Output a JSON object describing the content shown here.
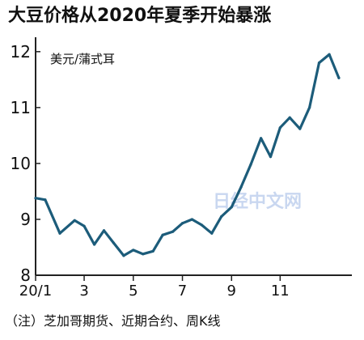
{
  "chart_data": {
    "type": "line",
    "title": "大豆价格从2020年夏季开始暴涨",
    "unit_label": "美元/蒲式耳",
    "ylim": [
      8,
      12.2
    ],
    "y_ticks": [
      8,
      9,
      10,
      11,
      12
    ],
    "y_tick_labels": [
      "8",
      "9",
      "10",
      "11",
      "12"
    ],
    "x_tick_labels": [
      "20/1",
      "3",
      "5",
      "7",
      "9",
      "11"
    ],
    "x_tick_weeks": [
      0,
      8.6,
      17.3,
      26,
      34.7,
      43.3
    ],
    "grid": false,
    "note": "（注）芝加哥期货、近期合约、周K线",
    "watermark": "日经中文网",
    "colors": {
      "line": "#1c5c7a",
      "axis": "#222222",
      "watermark": "#c9d7f0"
    },
    "series": [
      {
        "x": [
          0,
          1.7,
          4.3,
          6.9,
          8.6,
          10.4,
          12.1,
          13.8,
          15.6,
          17.3,
          19.0,
          20.8,
          22.5,
          24.3,
          26.0,
          27.7,
          29.4,
          31.2,
          32.9,
          34.7,
          36.4,
          38.1,
          39.9,
          41.6,
          43.3,
          45.0,
          46.8,
          48.5,
          50.2,
          52.0,
          53.7
        ],
        "values": [
          9.38,
          9.35,
          8.75,
          8.98,
          8.88,
          8.55,
          8.8,
          8.58,
          8.35,
          8.45,
          8.38,
          8.43,
          8.72,
          8.78,
          8.93,
          9.0,
          8.9,
          8.75,
          9.05,
          9.22,
          9.58,
          9.98,
          10.45,
          10.12,
          10.64,
          10.82,
          10.62,
          11.0,
          11.8,
          11.95,
          11.53
        ]
      }
    ]
  }
}
